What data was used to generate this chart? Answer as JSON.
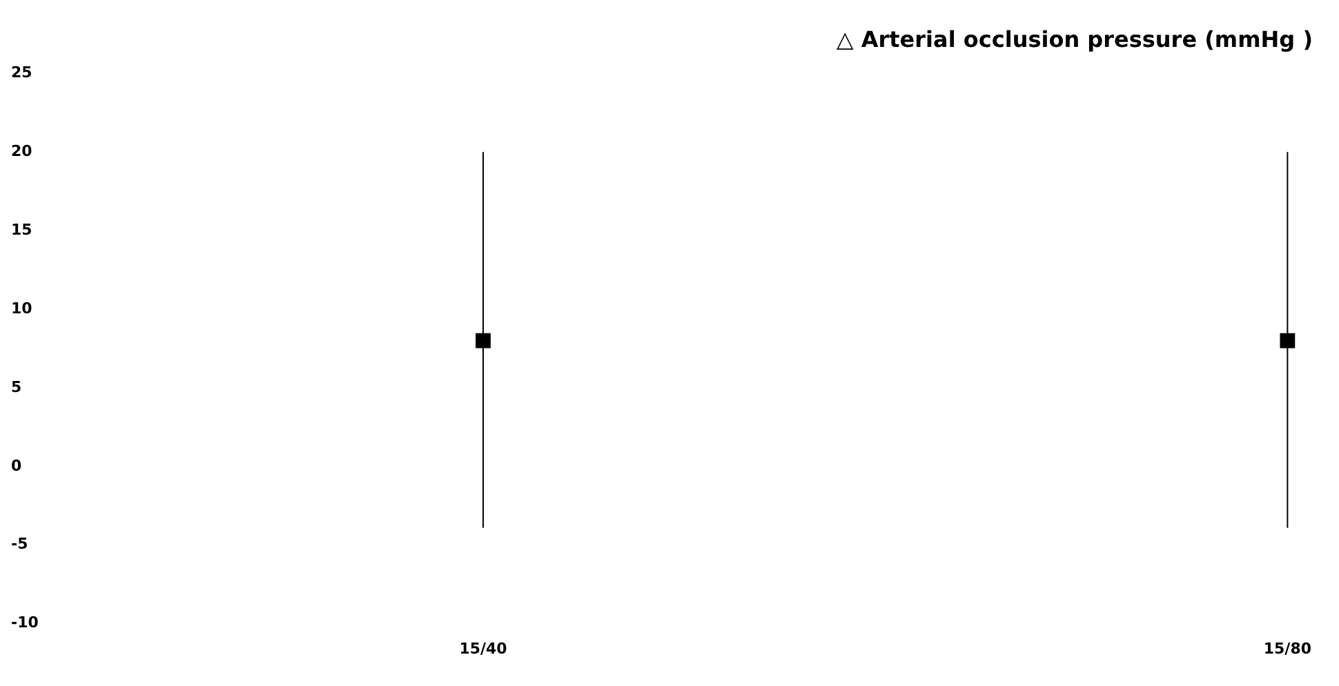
{
  "chart_data": {
    "type": "scatter",
    "title": "△ Arterial occlusion pressure (mmHg )",
    "categories": [
      "15/40",
      "15/80"
    ],
    "series": [
      {
        "color": "#000000",
        "values": [
          8,
          8
        ],
        "errors": [
          [
            -3.9,
            20
          ],
          [
            -3.9,
            20
          ]
        ]
      }
    ],
    "ylim": [
      -10,
      25
    ],
    "yticks": [
      -10,
      -5,
      0,
      5,
      10,
      15,
      20,
      25
    ],
    "grid": false,
    "legend": false,
    "marker": "square"
  }
}
